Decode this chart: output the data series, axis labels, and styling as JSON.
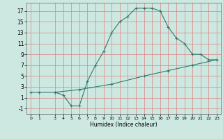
{
  "xlabel": "Humidex (Indice chaleur)",
  "background_color": "#cce8e0",
  "line_color": "#2d7a6e",
  "grid_color": "#e08080",
  "xlim": [
    -0.5,
    23.5
  ],
  "ylim": [
    -2.0,
    18.5
  ],
  "x_ticks": [
    0,
    1,
    3,
    4,
    5,
    6,
    7,
    8,
    9,
    10,
    11,
    12,
    13,
    14,
    15,
    16,
    17,
    18,
    19,
    20,
    21,
    22,
    23
  ],
  "y_ticks": [
    -1,
    1,
    3,
    5,
    7,
    9,
    11,
    13,
    15,
    17
  ],
  "curve1_x": [
    0,
    1,
    3,
    4,
    5,
    6,
    7,
    8,
    9,
    10,
    11,
    12,
    13,
    14,
    15,
    16,
    17,
    18,
    19,
    20,
    21,
    22,
    23
  ],
  "curve1_y": [
    2,
    2,
    2,
    1.5,
    -0.5,
    -0.5,
    4,
    7,
    9.5,
    13,
    15,
    16,
    17.5,
    17.5,
    17.5,
    17,
    14,
    12,
    11,
    9,
    9,
    8,
    8
  ],
  "curve2_x": [
    3,
    6,
    10,
    14,
    17,
    20,
    23
  ],
  "curve2_y": [
    2,
    2.5,
    3.5,
    5.0,
    6.0,
    7.0,
    8.0
  ]
}
